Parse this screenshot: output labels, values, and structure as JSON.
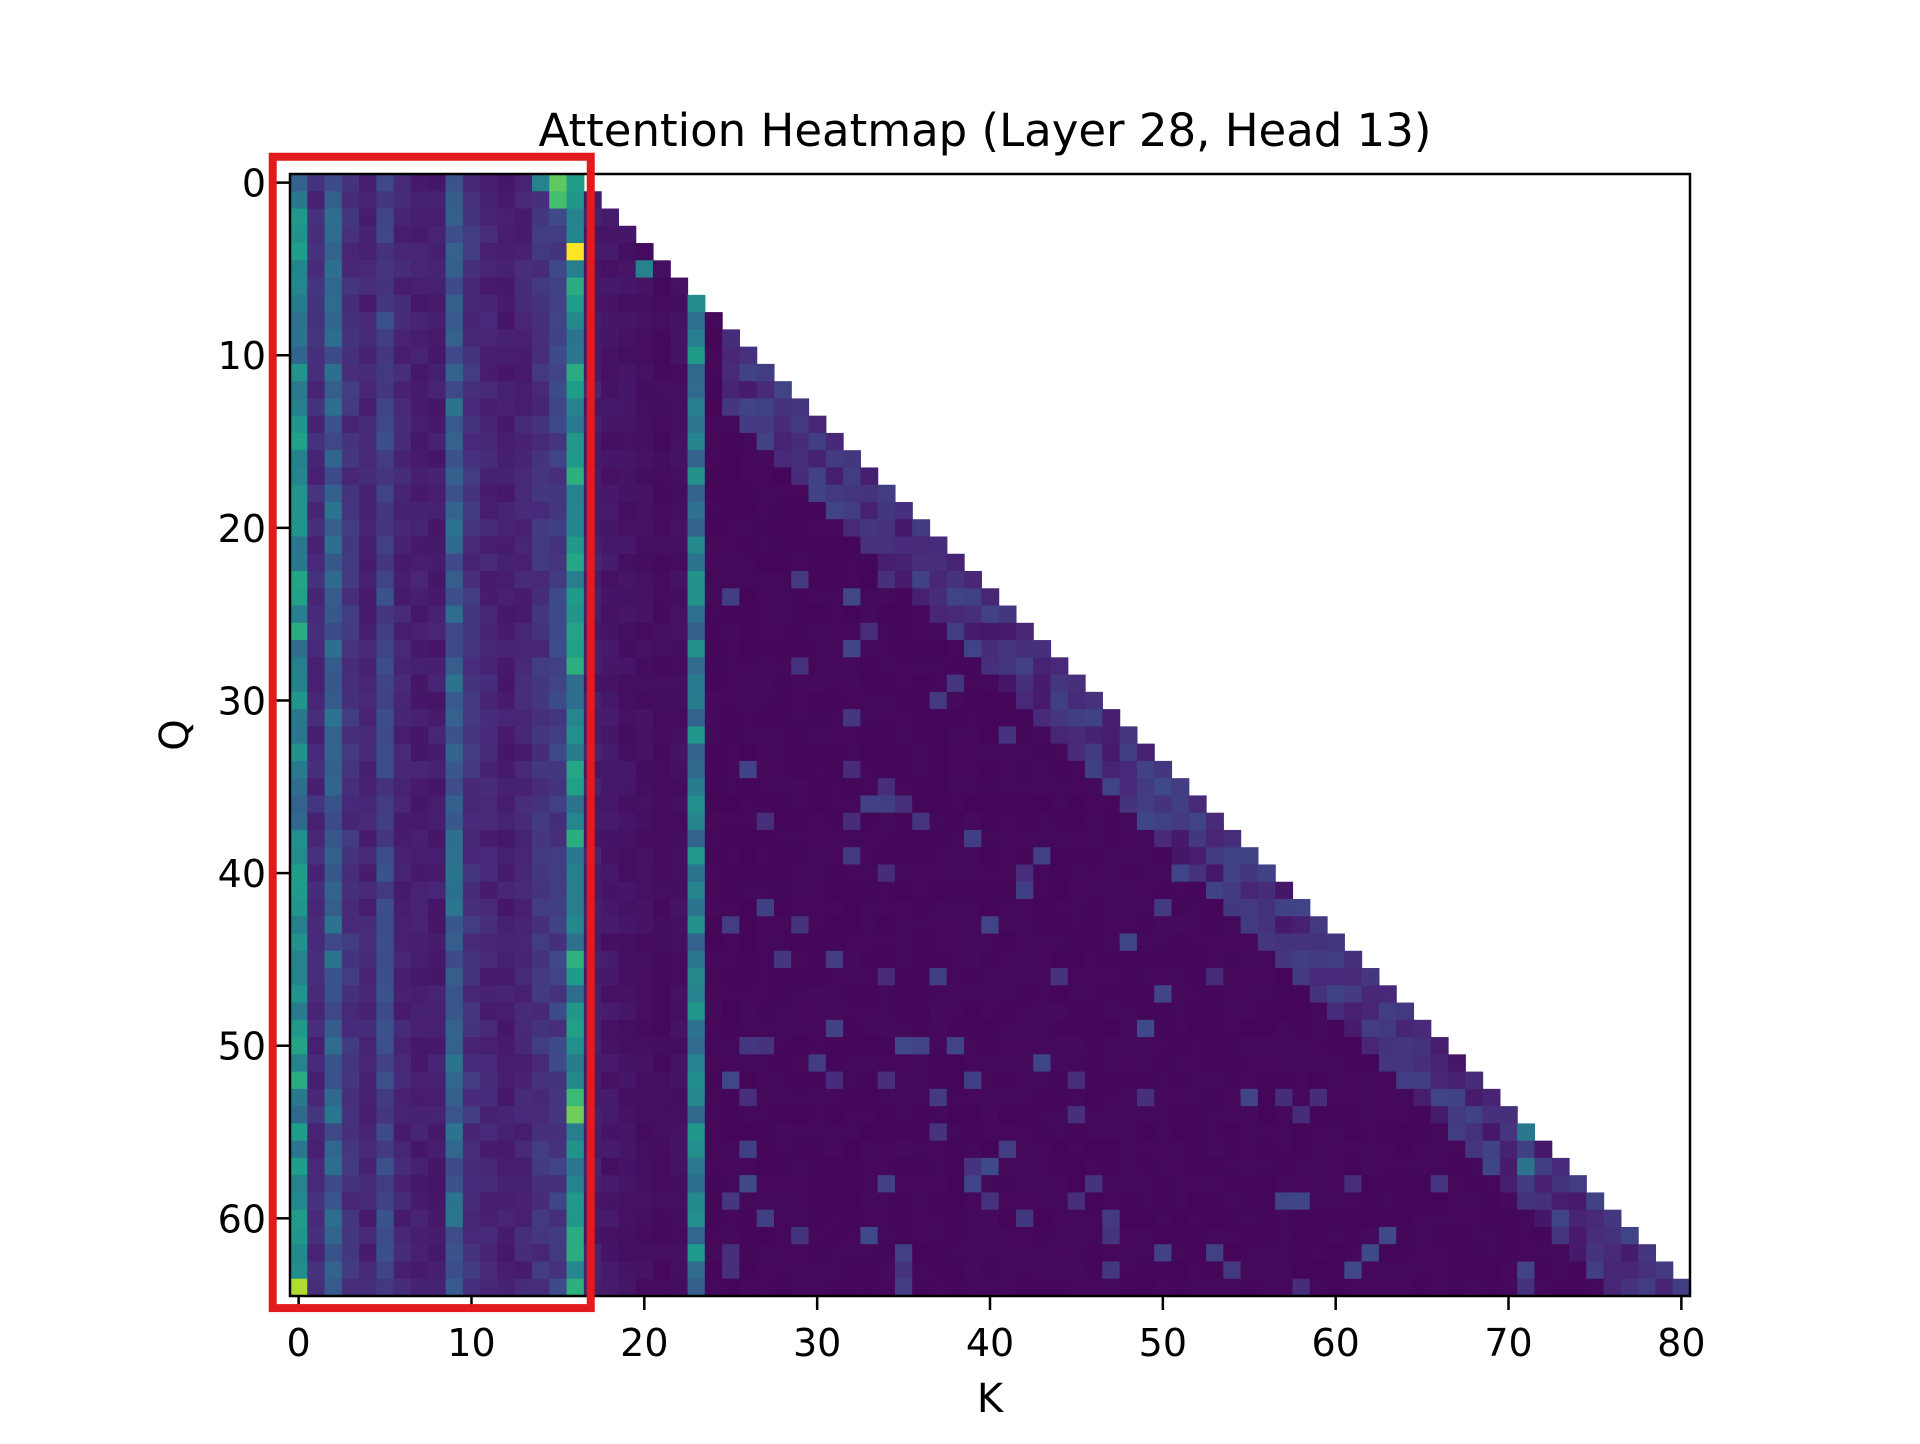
{
  "chart_data": {
    "type": "heatmap",
    "title": "Attention Heatmap (Layer 28, Head 13)",
    "xlabel": "K",
    "ylabel": "Q",
    "x_range": [
      -0.5,
      80.5
    ],
    "y_range": [
      -0.5,
      64.5
    ],
    "y_inverted": true,
    "mask": "causal (K > Q + 16 empty)",
    "x_ticks": [
      0,
      10,
      20,
      30,
      40,
      50,
      60,
      70,
      80
    ],
    "y_ticks": [
      0,
      10,
      20,
      30,
      40,
      50,
      60
    ],
    "colormap": "viridis",
    "value_scale": "0-1 normalized attention weight",
    "column_strength": {
      "0": 0.45,
      "1": 0.12,
      "2": 0.3,
      "3": 0.14,
      "4": 0.1,
      "5": 0.2,
      "6": 0.1,
      "7": 0.08,
      "8": 0.08,
      "9": 0.3,
      "10": 0.14,
      "11": 0.1,
      "12": 0.08,
      "13": 0.1,
      "14": 0.14,
      "15": 0.18,
      "16": 0.5,
      "17": 0.08,
      "18": 0.06,
      "19": 0.05,
      "20": 0.04,
      "21": 0.03,
      "22": 0.04,
      "23": 0.42
    },
    "strong_cells": [
      {
        "q": 0,
        "k": 15,
        "v": 0.75
      },
      {
        "q": 1,
        "k": 15,
        "v": 0.7
      },
      {
        "q": 0,
        "k": 14,
        "v": 0.45
      },
      {
        "q": 4,
        "k": 16,
        "v": 1.0
      },
      {
        "q": 5,
        "k": 20,
        "v": 0.45
      },
      {
        "q": 54,
        "k": 16,
        "v": 0.78
      },
      {
        "q": 53,
        "k": 16,
        "v": 0.68
      },
      {
        "q": 62,
        "k": 16,
        "v": 0.62
      },
      {
        "q": 64,
        "k": 0,
        "v": 0.88
      },
      {
        "q": 26,
        "k": 0,
        "v": 0.62
      },
      {
        "q": 52,
        "k": 0,
        "v": 0.62
      },
      {
        "q": 23,
        "k": 0,
        "v": 0.58
      },
      {
        "q": 50,
        "k": 0,
        "v": 0.58
      },
      {
        "q": 40,
        "k": 0,
        "v": 0.56
      },
      {
        "q": 55,
        "k": 71,
        "v": 0.4
      },
      {
        "q": 57,
        "k": 71,
        "v": 0.38
      },
      {
        "q": 65,
        "k": 80,
        "v": 0.3
      }
    ],
    "highlight_box": {
      "k_range": [
        -1.5,
        16.9
      ],
      "q_range": [
        -1.5,
        65.2
      ],
      "color": "#e11b1b"
    }
  }
}
